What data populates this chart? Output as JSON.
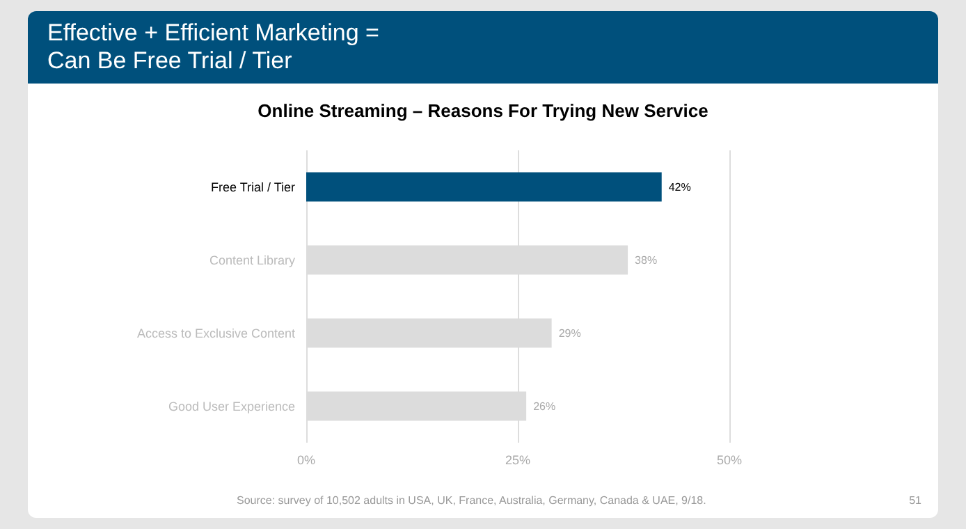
{
  "chart_data": {
    "type": "bar",
    "orientation": "horizontal",
    "title": "Effective + Efficient Marketing =\nCan Be Free Trial / Tier",
    "subtitle": "Online Streaming – Reasons For Trying New Service",
    "categories": [
      "Free Trial / Tier",
      "Content Library",
      "Access to Exclusive Content",
      "Good User Experience"
    ],
    "values": [
      42,
      38,
      29,
      26
    ],
    "colors": [
      "#00507c",
      "#dcdcdc",
      "#dcdcdc",
      "#dcdcdc"
    ],
    "value_labels": [
      "42%",
      "38%",
      "29%",
      "26%"
    ],
    "xlim": [
      0,
      50
    ],
    "xticks": [
      {
        "value": 0,
        "label": "0%"
      },
      {
        "value": 25,
        "label": "25%"
      },
      {
        "value": 50,
        "label": "50%"
      }
    ],
    "grid": "x",
    "annotations": [
      "Source: survey of 10,502 adults in USA, UK, France, Australia, Germany, Canada & UAE, 9/18.",
      "51"
    ]
  }
}
